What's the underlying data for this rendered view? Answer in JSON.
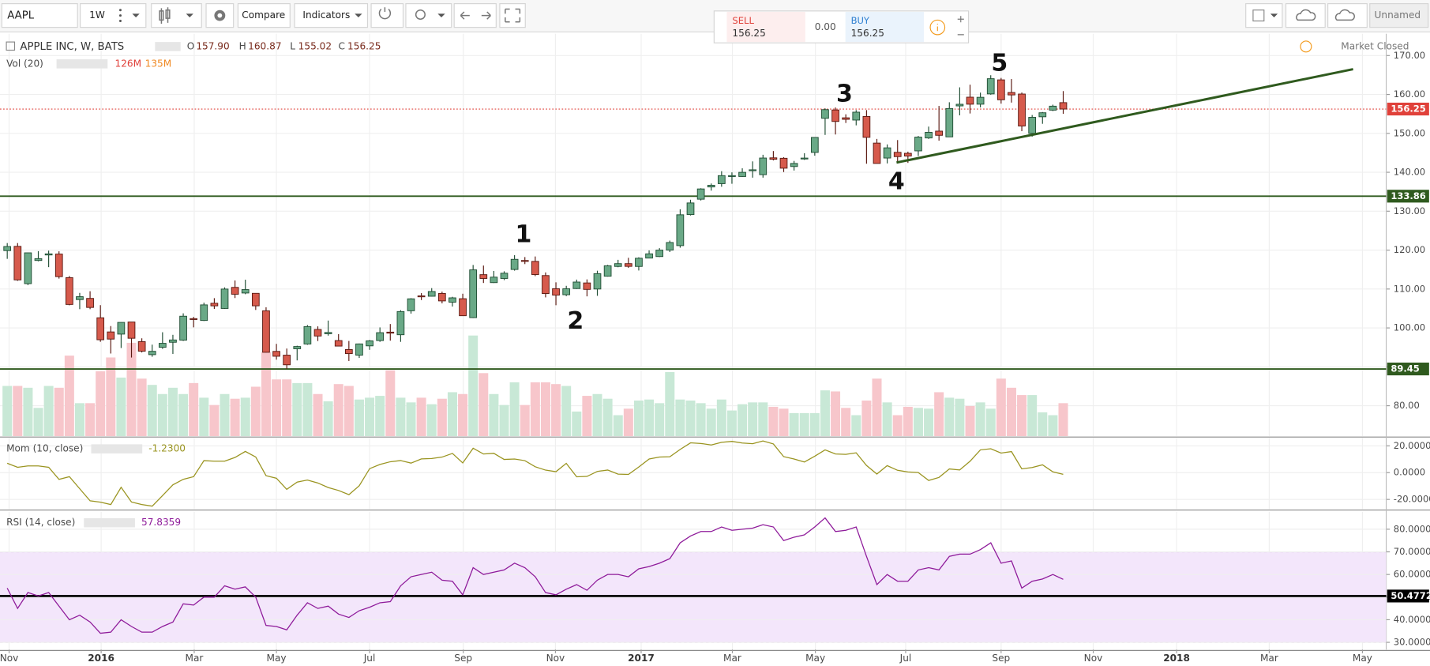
{
  "toolbar": {
    "symbol": "AAPL",
    "interval": "1W",
    "compare": "Compare",
    "indicators": "Indicators",
    "layout_name": "Unnamed"
  },
  "trade": {
    "sell_label": "SELL",
    "sell_price": "156.25",
    "spread": "0.00",
    "buy_label": "BUY",
    "buy_price": "156.25"
  },
  "legend": {
    "title": "APPLE INC, W, BATS",
    "ohlc": [
      [
        "O",
        "157.90"
      ],
      [
        "H",
        "160.87"
      ],
      [
        "L",
        "155.02"
      ],
      [
        "C",
        "156.25"
      ]
    ],
    "status": "Market Closed"
  },
  "chart_data": [
    {
      "type": "candlestick",
      "open": [
        119.87,
        120.96,
        111.38,
        117.33,
        118.75,
        118.98,
        112.91,
        107.28,
        107.59,
        102.61,
        98.97,
        98.41,
        101.52,
        96.47,
        93.13,
        95.02,
        96.31,
        96.86,
        102.39,
        101.91,
        106.34,
        105.0,
        110.42,
        108.97,
        108.89,
        104.41,
        93.97,
        93.0,
        94.64,
        95.87,
        99.6,
        98.5,
        96.75,
        94.44,
        93.0,
        95.39,
        96.75,
        98.92,
        98.25,
        104.41,
        108.23,
        108.14,
        108.86,
        106.62,
        107.51,
        102.65,
        113.69,
        111.64,
        112.71,
        115.02,
        117.33,
        117.1,
        113.46,
        110.08,
        108.53,
        110.12,
        111.56,
        110.0,
        113.29,
        115.8,
        116.52,
        115.8,
        117.95,
        118.34,
        120.0,
        121.15,
        129.13,
        133.08,
        136.23,
        137.08,
        138.95,
        138.91,
        140.4,
        139.39,
        143.71,
        143.6,
        141.48,
        143.5,
        145.1,
        153.87,
        156.01,
        154.0,
        153.42,
        154.34,
        147.5,
        143.66,
        145.13,
        144.88,
        145.5,
        148.82,
        150.58,
        149.1,
        157.06,
        159.3,
        157.5,
        160.14,
        163.75,
        160.5,
        160.11,
        149.99,
        154.26,
        155.97,
        157.9
      ],
      "high": [
        121.81,
        121.81,
        119.35,
        119.73,
        119.86,
        119.69,
        113.35,
        109.0,
        109.43,
        105.85,
        100.48,
        101.46,
        101.53,
        97.33,
        95.7,
        98.89,
        98.23,
        103.75,
        102.83,
        106.5,
        107.65,
        110.42,
        112.19,
        112.39,
        108.95,
        105.3,
        95.9,
        94.7,
        95.43,
        100.73,
        100.4,
        101.89,
        98.41,
        96.65,
        95.99,
        96.89,
        100.13,
        101.0,
        104.55,
        107.65,
        108.94,
        110.23,
        109.32,
        108.0,
        108.79,
        116.18,
        116.03,
        114.64,
        114.56,
        118.69,
        118.21,
        118.36,
        114.26,
        111.72,
        110.82,
        112.42,
        112.47,
        114.7,
        116.2,
        117.5,
        118.02,
        118.16,
        119.93,
        120.5,
        122.44,
        130.49,
        132.94,
        135.9,
        137.12,
        140.28,
        139.98,
        141.02,
        142.8,
        144.5,
        145.46,
        143.88,
        142.92,
        144.9,
        148.98,
        156.42,
        156.65,
        154.9,
        155.98,
        155.98,
        148.57,
        147.16,
        148.28,
        145.3,
        149.33,
        151.74,
        157.05,
        158.0,
        161.83,
        162.51,
        160.47,
        164.94,
        164.25,
        163.96,
        160.5,
        154.72,
        155.49,
        157.37,
        160.87
      ],
      "low": [
        117.75,
        112.1,
        111.0,
        117.12,
        115.62,
        112.68,
        105.81,
        104.82,
        104.82,
        96.43,
        93.42,
        94.84,
        92.39,
        93.69,
        92.59,
        94.61,
        93.32,
        96.65,
        100.15,
        101.78,
        104.89,
        104.88,
        107.68,
        108.66,
        104.62,
        93.68,
        91.85,
        89.47,
        91.65,
        95.67,
        96.63,
        98.02,
        95.3,
        91.5,
        92.28,
        94.37,
        96.42,
        96.73,
        96.42,
        103.68,
        107.16,
        108.08,
        106.31,
        105.5,
        103.13,
        102.53,
        111.55,
        111.55,
        112.28,
        114.72,
        116.4,
        113.31,
        107.85,
        105.83,
        108.17,
        110.01,
        108.11,
        108.25,
        113.18,
        115.59,
        115.43,
        114.76,
        117.94,
        118.22,
        119.5,
        120.62,
        128.9,
        132.75,
        135.28,
        136.28,
        137.05,
        138.82,
        138.62,
        138.62,
        143.05,
        140.06,
        140.45,
        143.18,
        144.27,
        149.6,
        149.71,
        152.67,
        152.06,
        142.2,
        142.28,
        142.28,
        142.41,
        142.41,
        144.18,
        148.57,
        148.13,
        149.05,
        154.63,
        155.11,
        156.68,
        159.93,
        157.64,
        157.91,
        150.56,
        149.16,
        152.46,
        155.73,
        155.02
      ],
      "close": [
        120.92,
        112.34,
        119.3,
        117.81,
        119.03,
        113.18,
        106.03,
        108.03,
        105.26,
        96.96,
        97.13,
        101.42,
        97.34,
        94.02,
        93.99,
        96.04,
        96.91,
        103.01,
        102.26,
        105.92,
        105.67,
        109.99,
        108.66,
        109.85,
        105.68,
        93.74,
        92.72,
        90.52,
        95.22,
        100.35,
        97.92,
        98.83,
        95.33,
        93.4,
        95.89,
        96.68,
        98.78,
        98.66,
        104.21,
        107.48,
        108.18,
        109.36,
        106.94,
        107.73,
        103.13,
        114.92,
        112.71,
        113.05,
        114.06,
        117.63,
        117.12,
        113.72,
        108.84,
        108.43,
        110.06,
        111.79,
        109.9,
        113.95,
        115.97,
        116.52,
        115.82,
        117.91,
        119.04,
        120.0,
        121.95,
        129.08,
        132.12,
        135.72,
        136.66,
        139.14,
        139.14,
        139.99,
        140.64,
        143.66,
        143.34,
        141.05,
        142.27,
        143.65,
        148.96,
        156.1,
        153.06,
        153.61,
        155.45,
        148.98,
        142.27,
        146.28,
        144.02,
        144.18,
        149.04,
        150.27,
        149.5,
        156.39,
        157.48,
        157.5,
        159.27,
        164.05,
        158.63,
        159.88,
        151.89,
        154.12,
        155.3,
        156.99,
        156.25
      ],
      "up_color": "#6aa987",
      "up_border": "#1f4d33",
      "down_color": "#d65a4c",
      "down_border": "#5a1810",
      "xlim": [
        -0.7,
        133.2
      ],
      "xticks": [
        {
          "value": 0.18,
          "label": "Nov"
        },
        {
          "value": 9.07,
          "label": "2016"
        },
        {
          "value": 18.06,
          "label": "Mar"
        },
        {
          "value": 26.0,
          "label": "May"
        },
        {
          "value": 35.0,
          "label": "Jul"
        },
        {
          "value": 44.05,
          "label": "Sep"
        },
        {
          "value": 52.95,
          "label": "Nov"
        },
        {
          "value": 61.23,
          "label": "2017"
        },
        {
          "value": 70.04,
          "label": "Mar"
        },
        {
          "value": 78.06,
          "label": "May"
        },
        {
          "value": 86.78,
          "label": "Jul"
        },
        {
          "value": 96.0,
          "label": "Sep"
        },
        {
          "value": 104.9,
          "label": "Nov"
        },
        {
          "value": 112.95,
          "label": "2018"
        },
        {
          "value": 121.9,
          "label": "Mar"
        },
        {
          "value": 130.9,
          "label": "May"
        }
      ],
      "ylim": [
        72.2,
        175.6
      ],
      "yticks": [
        {
          "value": 80,
          "label": "80.00"
        },
        {
          "value": 90,
          "label": "90.00"
        },
        {
          "value": 100,
          "label": "100.00"
        },
        {
          "value": 110,
          "label": "110.00"
        },
        {
          "value": 120,
          "label": "120.00"
        },
        {
          "value": 130,
          "label": "130.00"
        },
        {
          "value": 140,
          "label": "140.00"
        },
        {
          "value": 150,
          "label": "150.00"
        },
        {
          "value": 160,
          "label": "160.00"
        },
        {
          "value": 170,
          "label": "170.00"
        }
      ],
      "grid": true,
      "volume": {
        "name": "Vol (20)",
        "last_label": "126M",
        "ma_label": "135M",
        "vlim": [
          0,
          1540
        ],
        "up_color": "#c8e8d6",
        "down_color": "#f7c6cb",
        "values": [
          192,
          192,
          185,
          108,
          192,
          185,
          308,
          126,
          126,
          248,
          301,
          224,
          357,
          220,
          196,
          161,
          185,
          161,
          203,
          147,
          119,
          161,
          143,
          147,
          189,
          322,
          217,
          217,
          203,
          203,
          161,
          133,
          199,
          192,
          140,
          147,
          154,
          252,
          147,
          129,
          147,
          122,
          143,
          168,
          161,
          385,
          241,
          161,
          119,
          206,
          119,
          206,
          206,
          199,
          192,
          94,
          154,
          161,
          143,
          80,
          105,
          136,
          140,
          126,
          245,
          140,
          136,
          126,
          105,
          140,
          98,
          122,
          129,
          129,
          112,
          105,
          88,
          88,
          88,
          175,
          171,
          108,
          80,
          136,
          220,
          129,
          80,
          112,
          108,
          105,
          168,
          147,
          143,
          115,
          129,
          105,
          220,
          185,
          157,
          157,
          91,
          80,
          126
        ]
      },
      "hlines": [
        {
          "value": 133.86,
          "color": "#2f5a1e"
        },
        {
          "value": 89.45,
          "color": "#2f5a1e"
        }
      ],
      "last_price": {
        "value": 156.25,
        "color": "#e0413a"
      },
      "trendline": {
        "x": [
          85.9,
          130.0
        ],
        "y": [
          142.5,
          166.5
        ],
        "color": "#2f5a1e"
      },
      "wave_labels": [
        "1",
        "2",
        "3",
        "4",
        "5"
      ]
    },
    {
      "type": "line",
      "name": "Mom (10, close)",
      "last_label": "-1.2300",
      "color": "#9a9420",
      "values": [
        7,
        4,
        5,
        5,
        4,
        -5,
        -3,
        -12,
        -21,
        -22,
        -23.79,
        -10.92,
        -21.96,
        -23.79,
        -25.04,
        -17.14,
        -9.12,
        -5.02,
        -3.0,
        8.96,
        8.54,
        8.57,
        11.32,
        15.83,
        11.69,
        -2.3,
        -4.19,
        -12.49,
        -7.04,
        -5.57,
        -7.75,
        -11.16,
        -13.33,
        -16.45,
        -9.79,
        2.94,
        6.06,
        8.14,
        8.99,
        7.13,
        10.26,
        10.53,
        11.61,
        14.33,
        7.24,
        18.24,
        13.93,
        14.39,
        9.85,
        10.15,
        8.94,
        4.36,
        1.9,
        0.7,
        6.93,
        -3.13,
        -2.81,
        0.9,
        1.91,
        -1.11,
        -1.3,
        4.19,
        10.2,
        11.57,
        11.89,
        17.29,
        22.22,
        21.77,
        20.69,
        22.62,
        23.32,
        22.08,
        21.6,
        23.66,
        21.39,
        11.97,
        10.15,
        7.93,
        12.3,
        16.96,
        13.92,
        13.62,
        14.81,
        5.32,
        -1.07,
        5.23,
        1.75,
        0.53,
        0.08,
        -5.83,
        -3.56,
        2.78,
        2.03,
        8.52,
        17.0,
        17.77,
        14.61,
        15.7,
        2.85,
        3.85,
        5.8,
        0.6,
        -1.23
      ],
      "ylim": [
        -27.2,
        25.9
      ],
      "yticks": [
        {
          "value": -20,
          "label": "-20.0000"
        },
        {
          "value": 0,
          "label": "0.0000"
        },
        {
          "value": 20,
          "label": "20.0000"
        }
      ]
    },
    {
      "type": "line",
      "name": "RSI (14, close)",
      "last_label": "57.8359",
      "color": "#8e1a9a",
      "values": [
        54,
        45,
        52,
        50.5,
        52,
        46,
        40,
        42,
        39,
        34,
        34.5,
        40,
        37,
        34.5,
        34.5,
        37,
        39,
        47,
        46.5,
        50,
        50,
        55,
        53.5,
        54.5,
        50,
        37.5,
        37,
        35.5,
        42,
        47.5,
        45,
        46,
        42.5,
        41,
        44,
        45.5,
        47.5,
        48,
        55,
        59,
        60,
        61,
        57.5,
        57,
        51,
        63,
        60,
        61,
        62,
        65,
        63,
        59,
        52,
        51,
        53.5,
        55.5,
        53,
        57.5,
        60,
        60,
        59,
        62.5,
        63.5,
        65,
        67,
        74,
        77,
        79,
        79,
        81,
        79.5,
        80,
        80.5,
        82,
        81,
        75,
        76.5,
        77.5,
        81,
        85,
        79,
        79.5,
        81,
        68,
        55.5,
        60,
        57,
        57,
        62,
        63,
        62,
        68,
        69,
        69,
        71,
        74,
        65,
        66,
        54,
        57,
        58,
        60,
        57.8359
      ],
      "ylim": [
        26.8,
        87.7
      ],
      "yticks": [
        {
          "value": 30,
          "label": "30.0000"
        },
        {
          "value": 40,
          "label": "40.0000"
        },
        {
          "value": 50,
          "label": "50.0000"
        },
        {
          "value": 60,
          "label": "60.0000"
        },
        {
          "value": 70,
          "label": "70.0000"
        },
        {
          "value": 80,
          "label": "80.0000"
        }
      ],
      "band": [
        30,
        70
      ],
      "band_color": "#f3e6fb",
      "hline": {
        "value": 50.4772,
        "color": "#000000"
      }
    }
  ]
}
